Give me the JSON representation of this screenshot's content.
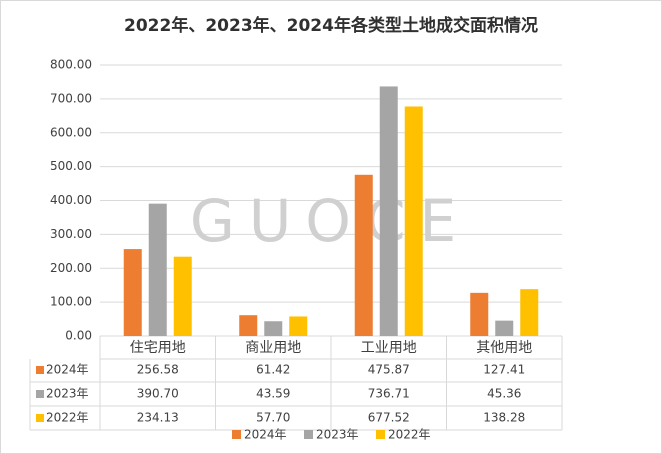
{
  "chart_data": {
    "type": "bar",
    "title": "2022年、2023年、2024年各类型土地成交面积情况",
    "watermark": "GUOCE",
    "categories": [
      "住宅用地",
      "商业用地",
      "工业用地",
      "其他用地"
    ],
    "series": [
      {
        "name": "2024年",
        "color": "#ED7D31",
        "values": [
          256.58,
          61.42,
          475.87,
          127.41
        ],
        "value_labels": [
          "256.58",
          "61.42",
          "475.87",
          "127.41"
        ]
      },
      {
        "name": "2023年",
        "color": "#A5A5A5",
        "values": [
          390.7,
          43.59,
          736.71,
          45.36
        ],
        "value_labels": [
          "390.70",
          "43.59",
          "736.71",
          "45.36"
        ]
      },
      {
        "name": "2022年",
        "color": "#FFC000",
        "values": [
          234.13,
          57.7,
          677.52,
          138.28
        ],
        "value_labels": [
          "234.13",
          "57.70",
          "677.52",
          "138.28"
        ]
      }
    ],
    "ylim": [
      0,
      800
    ],
    "yticks": [
      {
        "value": 0,
        "label": "0.00"
      },
      {
        "value": 100,
        "label": "100.00"
      },
      {
        "value": 200,
        "label": "200.00"
      },
      {
        "value": 300,
        "label": "300.00"
      },
      {
        "value": 400,
        "label": "400.00"
      },
      {
        "value": 500,
        "label": "500.00"
      },
      {
        "value": 600,
        "label": "600.00"
      },
      {
        "value": 700,
        "label": "700.00"
      },
      {
        "value": 800,
        "label": "800.00"
      }
    ],
    "grid": true
  }
}
